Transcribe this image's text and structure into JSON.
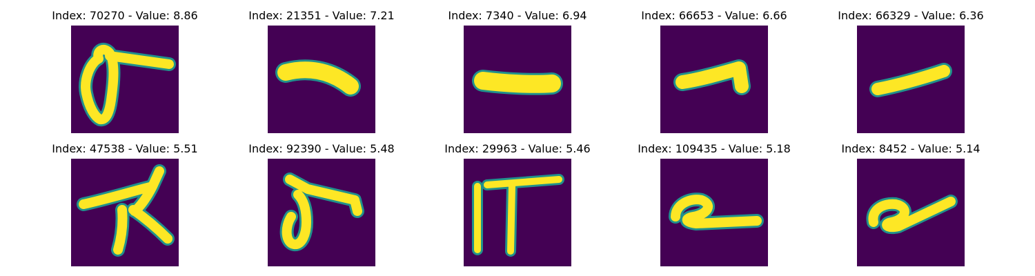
{
  "figure": {
    "colors": {
      "background": "#440154",
      "edge": "#21918c",
      "stroke": "#fde725"
    },
    "panels": [
      {
        "title": "Index: 70270 - Value: 8.86",
        "index": 70270,
        "value": 8.86,
        "glyph": "loop-with-right-bar"
      },
      {
        "title": "Index: 21351 - Value: 7.21",
        "index": 21351,
        "value": 7.21,
        "glyph": "horizontal-stroke"
      },
      {
        "title": "Index: 7340 - Value: 6.94",
        "index": 7340,
        "value": 6.94,
        "glyph": "horizontal-stroke"
      },
      {
        "title": "Index: 66653 - Value: 6.66",
        "index": 66653,
        "value": 6.66,
        "glyph": "hook-stroke"
      },
      {
        "title": "Index: 66329 - Value: 6.36",
        "index": 66329,
        "value": 6.36,
        "glyph": "slanted-stroke"
      },
      {
        "title": "Index: 47538 - Value: 5.51",
        "index": 47538,
        "value": 5.51,
        "glyph": "branching-stroke"
      },
      {
        "title": "Index: 92390 - Value: 5.48",
        "index": 92390,
        "value": 5.48,
        "glyph": "loop-with-right-bar"
      },
      {
        "title": "Index: 29963 - Value: 5.46",
        "index": 29963,
        "value": 5.46,
        "glyph": "double-vertical-with-bar"
      },
      {
        "title": "Index: 109435 - Value: 5.18",
        "index": 109435,
        "value": 5.18,
        "glyph": "loop-with-tail"
      },
      {
        "title": "Index: 8452 - Value: 5.14",
        "index": 8452,
        "value": 5.14,
        "glyph": "loop-with-tail"
      }
    ]
  }
}
